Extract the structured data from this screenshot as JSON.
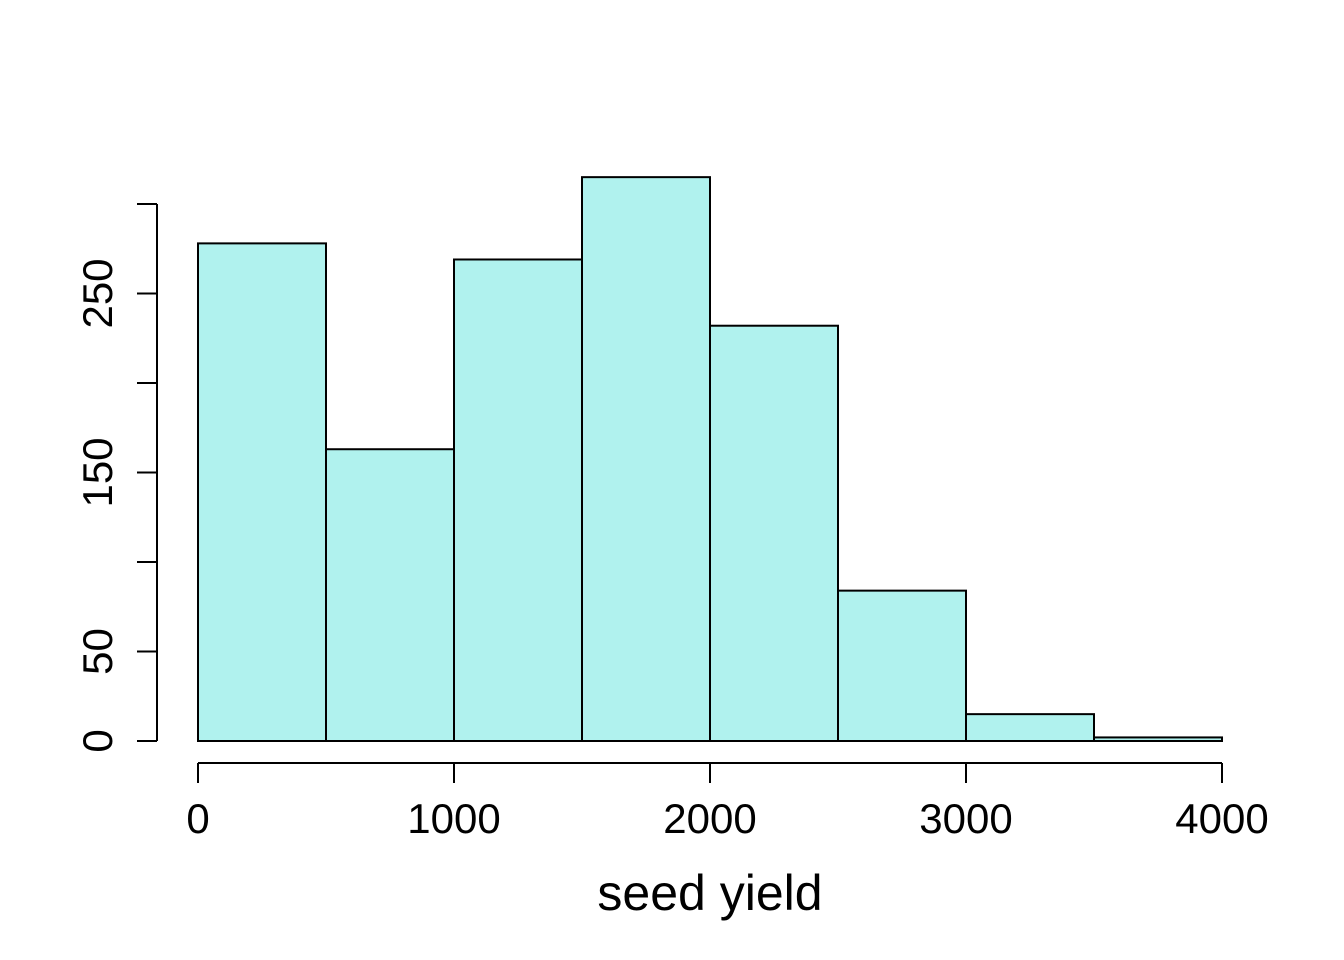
{
  "chart_data": {
    "type": "bar",
    "subtype": "histogram",
    "title": "",
    "xlabel": "seed yield",
    "ylabel": "",
    "bins": [
      {
        "from": 0,
        "to": 500,
        "count": 278
      },
      {
        "from": 500,
        "to": 1000,
        "count": 163
      },
      {
        "from": 1000,
        "to": 1500,
        "count": 269
      },
      {
        "from": 1500,
        "to": 2000,
        "count": 315
      },
      {
        "from": 2000,
        "to": 2500,
        "count": 232
      },
      {
        "from": 2500,
        "to": 3000,
        "count": 84
      },
      {
        "from": 3000,
        "to": 3500,
        "count": 15
      },
      {
        "from": 3500,
        "to": 4000,
        "count": 2
      }
    ],
    "xlim": [
      0,
      4000
    ],
    "ylim": [
      0,
      300
    ],
    "x_ticks": [
      0,
      1000,
      2000,
      3000,
      4000
    ],
    "x_tick_labels": [
      "0",
      "1000",
      "2000",
      "3000",
      "4000"
    ],
    "y_ticks": [
      0,
      50,
      100,
      150,
      200,
      250,
      300
    ],
    "y_tick_labels": [
      "0",
      "50",
      "",
      "150",
      "",
      "250",
      ""
    ],
    "grid": false,
    "legend": "none",
    "bar_color": "#B0F2EE",
    "edge_color": "#000000"
  }
}
